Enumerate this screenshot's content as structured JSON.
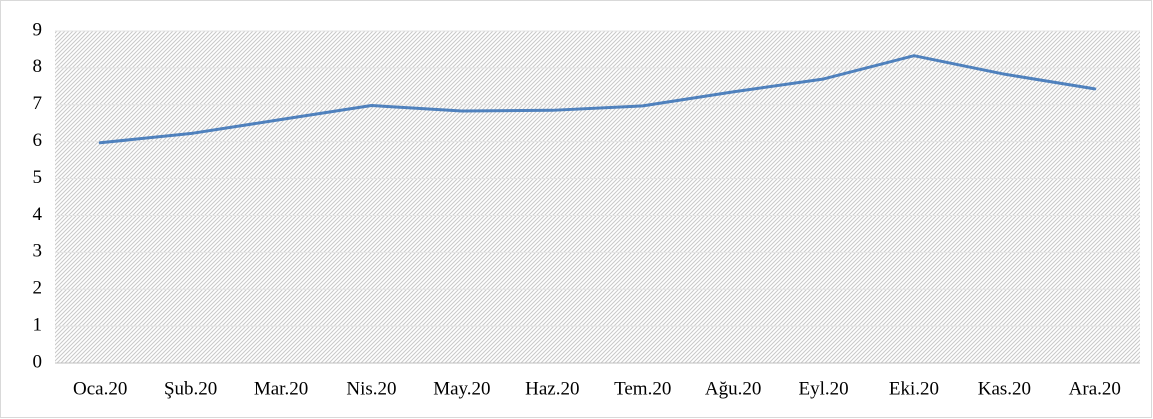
{
  "chart_data": {
    "type": "line",
    "categories": [
      "Oca.20",
      "Şub.20",
      "Mar.20",
      "Nis.20",
      "May.20",
      "Haz.20",
      "Tem.20",
      "Ağu.20",
      "Eyl.20",
      "Eki.20",
      "Kas.20",
      "Ara.20"
    ],
    "series": [
      {
        "color": "#4f81bd",
        "values": [
          5.97,
          6.22,
          6.6,
          6.98,
          6.83,
          6.85,
          6.97,
          7.35,
          7.7,
          8.33,
          7.83,
          7.43
        ]
      }
    ],
    "ylim": [
      0,
      9
    ],
    "yticks": [
      0,
      1,
      2,
      3,
      4,
      5,
      6,
      7,
      8,
      9
    ],
    "grid": true
  }
}
